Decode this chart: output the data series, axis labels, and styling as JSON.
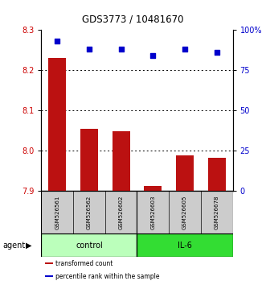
{
  "title": "GDS3773 / 10481670",
  "samples": [
    "GSM526561",
    "GSM526562",
    "GSM526602",
    "GSM526603",
    "GSM526605",
    "GSM526678"
  ],
  "bar_values": [
    8.23,
    8.055,
    8.048,
    7.912,
    7.988,
    7.982
  ],
  "percentile_values": [
    93,
    88,
    88,
    84,
    88,
    86
  ],
  "ylim_left": [
    7.9,
    8.3
  ],
  "ylim_right": [
    0,
    100
  ],
  "yticks_left": [
    7.9,
    8.0,
    8.1,
    8.2,
    8.3
  ],
  "yticks_right": [
    0,
    25,
    50,
    75,
    100
  ],
  "yticklabels_right": [
    "0",
    "25",
    "50",
    "75",
    "100%"
  ],
  "bar_color": "#bb1111",
  "dot_color": "#0000cc",
  "sample_box_color": "#cccccc",
  "groups": [
    {
      "label": "control",
      "indices": [
        0,
        1,
        2
      ],
      "color": "#bbffbb"
    },
    {
      "label": "IL-6",
      "indices": [
        3,
        4,
        5
      ],
      "color": "#33dd33"
    }
  ],
  "group_row_label": "agent",
  "legend_items": [
    {
      "color": "#bb1111",
      "label": "transformed count"
    },
    {
      "color": "#0000cc",
      "label": "percentile rank within the sample"
    }
  ],
  "tick_label_color_left": "#cc0000",
  "tick_label_color_right": "#0000cc",
  "gridline_ticks": [
    8.0,
    8.1,
    8.2
  ]
}
